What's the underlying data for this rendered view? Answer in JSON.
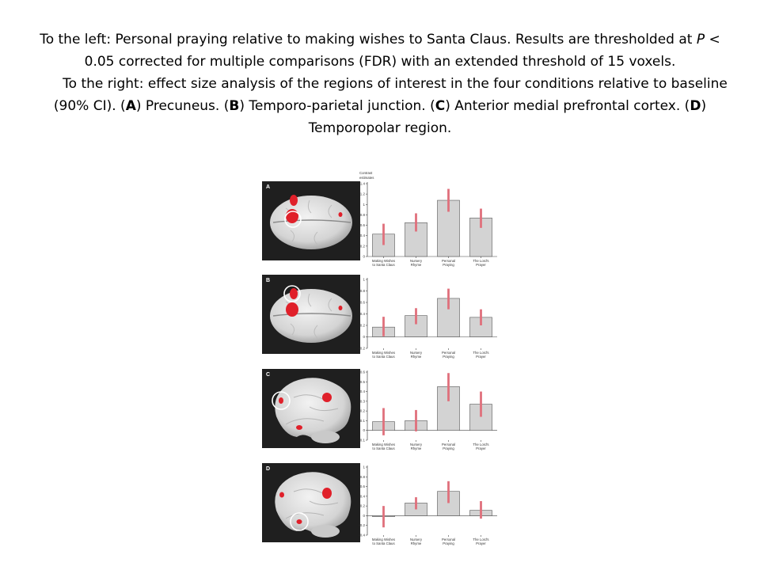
{
  "caption": {
    "p1_a": "To the left: Personal praying relative to making wishes to Santa Claus. Results are thresholded at ",
    "p1_italic": "P",
    "p1_b": " < 0.05 corrected for multiple comparisons (FDR) with an extended threshold of 15 voxels.",
    "p2_a": "To the right: effect size analysis of the regions of interest in the four conditions relative to baseline (90% CI). (",
    "p2_A": "A",
    "p2_b": ") Precuneus. (",
    "p2_B": "B",
    "p2_c": ") Temporo-parietal junction. (",
    "p2_C": "C",
    "p2_d": ") Anterior medial prefrontal cortex. (",
    "p2_D": "D",
    "p2_e": ") Temporopolar region."
  },
  "panels": [
    {
      "letter": "A",
      "view": "top"
    },
    {
      "letter": "B",
      "view": "top"
    },
    {
      "letter": "C",
      "view": "side"
    },
    {
      "letter": "D",
      "view": "side"
    }
  ],
  "colors": {
    "bar": "#d3d3d3",
    "error_bar": "#e0707c",
    "activation": "#e0202a",
    "panel_bg": "#1f1f1f"
  },
  "chart_data": [
    {
      "type": "bar",
      "panel": "A",
      "ylabel": "Contrast estimates",
      "ylim": [
        0,
        1.4
      ],
      "yticks": [
        "0",
        "0.2",
        "0.4",
        "0.6",
        "0.8",
        "1",
        "1.2",
        "1.4"
      ],
      "categories": [
        "Making Wishes to Santa Claus",
        "Nursery Rhyme",
        "Personal Praying",
        "The Lord's Prayer"
      ],
      "values": [
        0.43,
        0.65,
        1.08,
        0.74
      ],
      "ci_low": [
        0.22,
        0.48,
        0.86,
        0.55
      ],
      "ci_high": [
        0.63,
        0.83,
        1.3,
        0.92
      ]
    },
    {
      "type": "bar",
      "panel": "B",
      "ylabel": "",
      "ylim": [
        -0.2,
        1
      ],
      "yticks": [
        "-0.2",
        "0",
        "0.2",
        "0.4",
        "0.6",
        "0.8",
        "1"
      ],
      "categories": [
        "Making Wishes to Santa Claus",
        "Nursery Rhyme",
        "Personal Praying",
        "The Lord's Prayer"
      ],
      "values": [
        0.17,
        0.37,
        0.67,
        0.34
      ],
      "ci_low": [
        0.01,
        0.22,
        0.48,
        0.2
      ],
      "ci_high": [
        0.35,
        0.5,
        0.84,
        0.48
      ]
    },
    {
      "type": "bar",
      "panel": "C",
      "ylabel": "",
      "ylim": [
        -0.1,
        0.6
      ],
      "yticks": [
        "-0.1",
        "0",
        "0.1",
        "0.2",
        "0.3",
        "0.4",
        "0.5",
        "0.6"
      ],
      "categories": [
        "Making Wishes to Santa Claus",
        "Nursery Rhyme",
        "Personal Praying",
        "The Lord's Prayer"
      ],
      "values": [
        0.09,
        0.1,
        0.45,
        0.27
      ],
      "ci_low": [
        -0.05,
        -0.01,
        0.3,
        0.14
      ],
      "ci_high": [
        0.23,
        0.21,
        0.59,
        0.4
      ]
    },
    {
      "type": "bar",
      "panel": "D",
      "ylabel": "",
      "ylim": [
        -0.4,
        1
      ],
      "yticks": [
        "-0.4",
        "-0.2",
        "0",
        "0.2",
        "0.4",
        "0.6",
        "0.8",
        "1"
      ],
      "categories": [
        "Making Wishes to Santa Claus",
        "Nursery Rhyme",
        "Personal Praying",
        "The Lord's Prayer"
      ],
      "values": [
        -0.02,
        0.26,
        0.5,
        0.11
      ],
      "ci_low": [
        -0.24,
        0.13,
        0.26,
        -0.06
      ],
      "ci_high": [
        0.2,
        0.38,
        0.71,
        0.3
      ]
    }
  ]
}
